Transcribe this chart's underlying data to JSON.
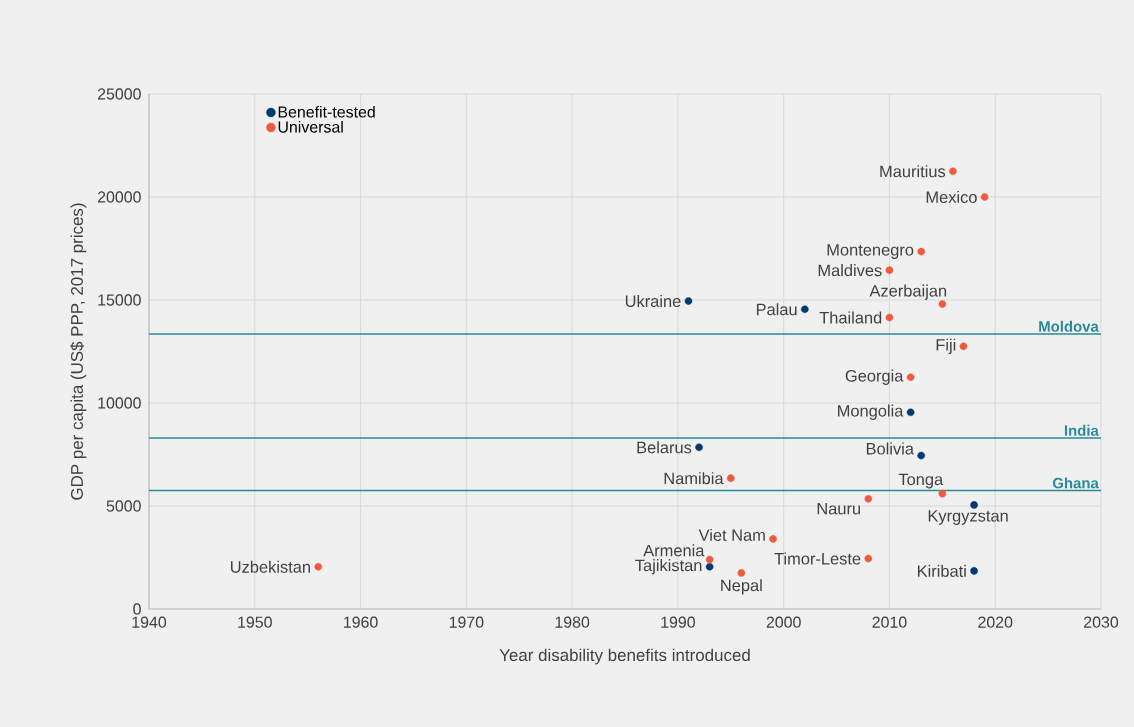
{
  "chart_data": {
    "type": "scatter",
    "xlabel": "Year disability benefits introduced",
    "ylabel": "GDP per capita (US$ PPP, 2017 prices)",
    "xlim": [
      1940,
      2030
    ],
    "ylim": [
      0,
      25000
    ],
    "xticks": [
      1940,
      1950,
      1960,
      1970,
      1980,
      1990,
      2000,
      2010,
      2020,
      2030
    ],
    "yticks": [
      0,
      5000,
      10000,
      15000,
      20000,
      25000
    ],
    "grid": true,
    "legend": "top left",
    "marker": "circle",
    "series": [
      {
        "name": "Benefit-tested",
        "color": "#003a70",
        "x": [
          1991,
          2002,
          2012,
          1992,
          2013,
          2018,
          1993,
          2018
        ],
        "values": [
          14950,
          14550,
          9550,
          7850,
          7450,
          5050,
          2050,
          1850
        ]
      },
      {
        "name": "Universal",
        "color": "#f05a3c",
        "x": [
          2016,
          2019,
          2013,
          2010,
          2015,
          2010,
          2017,
          2012,
          1995,
          2015,
          2008,
          1999,
          1993,
          2008,
          1996,
          1956
        ],
        "values": [
          21250,
          20000,
          17350,
          16450,
          14800,
          14150,
          12750,
          11250,
          6350,
          5600,
          5350,
          3400,
          2400,
          2450,
          1750,
          2050
        ]
      }
    ],
    "ref_lines": [
      {
        "axis": "y",
        "value": 13350,
        "label": "Moldova",
        "color": "#2a8a9a"
      },
      {
        "axis": "y",
        "value": 8300,
        "label": "India",
        "color": "#2a8a9a"
      },
      {
        "axis": "y",
        "value": 5750,
        "label": "Ghana",
        "color": "#2a8a9a"
      }
    ],
    "annotations": [
      {
        "text": "Mauritius",
        "x": 2016,
        "y": 21250
      },
      {
        "text": "Mexico",
        "x": 2019,
        "y": 20000
      },
      {
        "text": "Montenegro",
        "x": 2013,
        "y": 17350
      },
      {
        "text": "Maldives",
        "x": 2010,
        "y": 16450
      },
      {
        "text": "Azerbaijan",
        "x": 2015,
        "y": 14800
      },
      {
        "text": "Thailand",
        "x": 2010,
        "y": 14150
      },
      {
        "text": "Fiji",
        "x": 2017,
        "y": 12750
      },
      {
        "text": "Georgia",
        "x": 2012,
        "y": 11250
      },
      {
        "text": "Mongolia",
        "x": 2012,
        "y": 9550
      },
      {
        "text": "Bolivia",
        "x": 2013,
        "y": 7450
      },
      {
        "text": "Tonga",
        "x": 2015,
        "y": 5600
      },
      {
        "text": "Nauru",
        "x": 2008,
        "y": 5350
      },
      {
        "text": "Kyrgyzstan",
        "x": 2018,
        "y": 5050
      },
      {
        "text": "Kiribati",
        "x": 2018,
        "y": 1850
      },
      {
        "text": "Viet Nam",
        "x": 1999,
        "y": 3400
      },
      {
        "text": "Armenia",
        "x": 1993,
        "y": 2400
      },
      {
        "text": "Tajikistan",
        "x": 1993,
        "y": 2050
      },
      {
        "text": "Nepal",
        "x": 1996,
        "y": 1750
      },
      {
        "text": "Timor-Leste",
        "x": 2008,
        "y": 2450
      },
      {
        "text": "Namibia",
        "x": 1995,
        "y": 6350
      },
      {
        "text": "Belarus",
        "x": 1992,
        "y": 7850
      },
      {
        "text": "Ukraine",
        "x": 1991,
        "y": 14950
      },
      {
        "text": "Palau",
        "x": 2002,
        "y": 14550
      },
      {
        "text": "Uzbekistan",
        "x": 1956,
        "y": 2050
      }
    ]
  }
}
